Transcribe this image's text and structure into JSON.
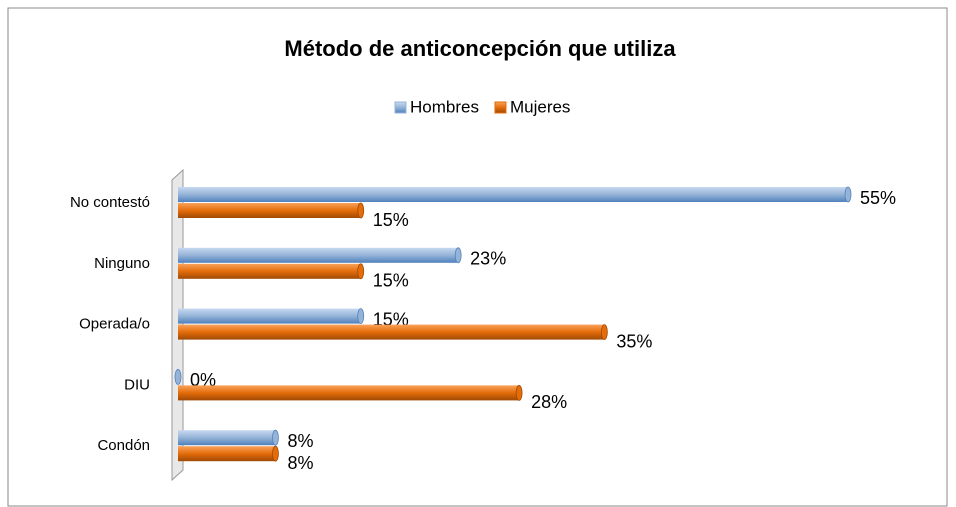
{
  "chart_data": {
    "type": "bar",
    "orientation": "horizontal",
    "title": "Método de anticoncepción que utiliza",
    "categories": [
      "No contestó",
      "Ninguno",
      "Operada/o",
      "DIU",
      "Condón"
    ],
    "series": [
      {
        "name": "Hombres",
        "color": "#95b3d7",
        "values": [
          55,
          23,
          15,
          0,
          8
        ],
        "value_labels": [
          "55%",
          "23%",
          "15%",
          "0%",
          "8%"
        ]
      },
      {
        "name": "Mujeres",
        "color": "#e46c0a",
        "values": [
          15,
          15,
          35,
          28,
          8
        ],
        "value_labels": [
          "15%",
          "15%",
          "35%",
          "28%",
          "8%"
        ]
      }
    ],
    "xlim": [
      0,
      55
    ],
    "legend": "top"
  }
}
